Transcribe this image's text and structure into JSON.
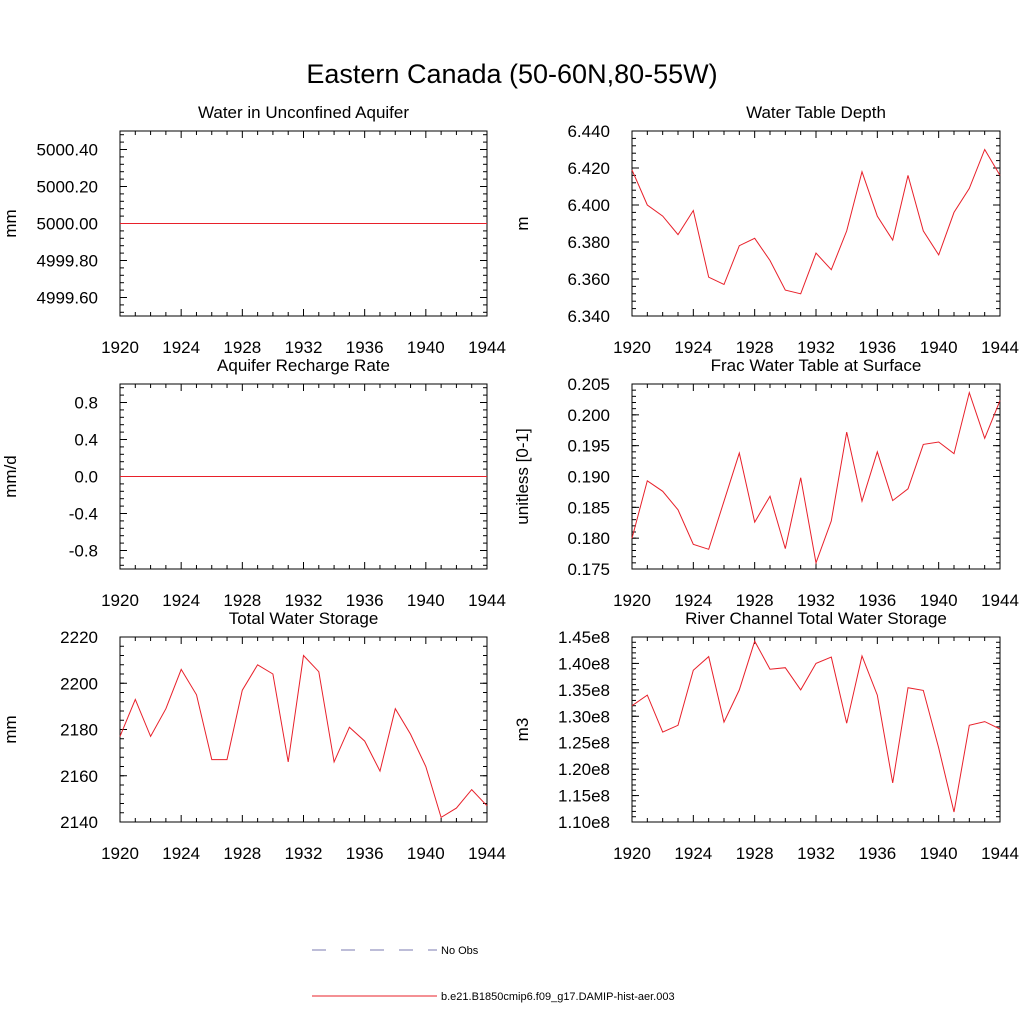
{
  "figure": {
    "title": "Eastern Canada (50-60N,80-55W)"
  },
  "legend": {
    "placement": "bottom-center",
    "entries": [
      {
        "label": "No Obs",
        "style": "dashed",
        "color": "#7b7bb0"
      },
      {
        "label": "b.e21.B1850cmip6.f09_g17.DAMIP-hist-aer.003",
        "style": "solid",
        "color": "#e8202a"
      }
    ]
  },
  "chart_data": [
    {
      "type": "line",
      "title": "Water in Unconfined Aquifer",
      "ylabel": "mm",
      "xlim": [
        1920,
        1944
      ],
      "ylim": [
        4999.5,
        5000.5
      ],
      "xticks": [
        "1920",
        "1924",
        "1928",
        "1932",
        "1936",
        "1940",
        "1944"
      ],
      "yticks": [
        {
          "value": 4999.6,
          "label": "4999.60"
        },
        {
          "value": 4999.8,
          "label": "4999.80"
        },
        {
          "value": 5000.0,
          "label": "5000.00"
        },
        {
          "value": 5000.2,
          "label": "5000.20"
        },
        {
          "value": 5000.4,
          "label": "5000.40"
        }
      ],
      "series": [
        {
          "color": "#e8202a",
          "x": [
            1920,
            1944
          ],
          "values": [
            5000.0,
            5000.0
          ]
        }
      ]
    },
    {
      "type": "line",
      "title": "Water Table Depth",
      "ylabel": "m",
      "xlim": [
        1920,
        1944
      ],
      "ylim": [
        6.34,
        6.44
      ],
      "xticks": [
        "1920",
        "1924",
        "1928",
        "1932",
        "1936",
        "1940",
        "1944"
      ],
      "yticks": [
        {
          "value": 6.34,
          "label": "6.340"
        },
        {
          "value": 6.36,
          "label": "6.360"
        },
        {
          "value": 6.38,
          "label": "6.380"
        },
        {
          "value": 6.4,
          "label": "6.400"
        },
        {
          "value": 6.42,
          "label": "6.420"
        },
        {
          "value": 6.44,
          "label": "6.440"
        }
      ],
      "series": [
        {
          "color": "#e8202a",
          "x": [
            1920,
            1921,
            1922,
            1923,
            1924,
            1925,
            1926,
            1927,
            1928,
            1929,
            1930,
            1931,
            1932,
            1933,
            1934,
            1935,
            1936,
            1937,
            1938,
            1939,
            1940,
            1941,
            1942,
            1943,
            1944
          ],
          "values": [
            6.419,
            6.4,
            6.394,
            6.384,
            6.397,
            6.361,
            6.357,
            6.378,
            6.382,
            6.37,
            6.354,
            6.352,
            6.374,
            6.365,
            6.386,
            6.418,
            6.394,
            6.381,
            6.416,
            6.386,
            6.373,
            6.396,
            6.409,
            6.43,
            6.416
          ]
        }
      ]
    },
    {
      "type": "line",
      "title": "Aquifer Recharge Rate",
      "ylabel": "mm/d",
      "xlim": [
        1920,
        1944
      ],
      "ylim": [
        -1.0,
        1.0
      ],
      "xticks": [
        "1920",
        "1924",
        "1928",
        "1932",
        "1936",
        "1940",
        "1944"
      ],
      "yticks": [
        {
          "value": -0.8,
          "label": "-0.8"
        },
        {
          "value": -0.4,
          "label": "-0.4"
        },
        {
          "value": 0.0,
          "label": "0.0"
        },
        {
          "value": 0.4,
          "label": "0.4"
        },
        {
          "value": 0.8,
          "label": "0.8"
        }
      ],
      "series": [
        {
          "color": "#e8202a",
          "x": [
            1920,
            1944
          ],
          "values": [
            0.0,
            0.0
          ]
        }
      ]
    },
    {
      "type": "line",
      "title": "Frac Water Table at Surface",
      "ylabel": "unitless [0-1]",
      "xlim": [
        1920,
        1944
      ],
      "ylim": [
        0.175,
        0.205
      ],
      "xticks": [
        "1920",
        "1924",
        "1928",
        "1932",
        "1936",
        "1940",
        "1944"
      ],
      "yticks": [
        {
          "value": 0.175,
          "label": "0.175"
        },
        {
          "value": 0.18,
          "label": "0.180"
        },
        {
          "value": 0.185,
          "label": "0.185"
        },
        {
          "value": 0.19,
          "label": "0.190"
        },
        {
          "value": 0.195,
          "label": "0.195"
        },
        {
          "value": 0.2,
          "label": "0.200"
        },
        {
          "value": 0.205,
          "label": "0.205"
        }
      ],
      "series": [
        {
          "color": "#e8202a",
          "x": [
            1920,
            1921,
            1922,
            1923,
            1924,
            1925,
            1926,
            1927,
            1928,
            1929,
            1930,
            1931,
            1932,
            1933,
            1934,
            1935,
            1936,
            1937,
            1938,
            1939,
            1940,
            1941,
            1942,
            1943,
            1944
          ],
          "values": [
            0.18,
            0.1893,
            0.1876,
            0.1846,
            0.179,
            0.1782,
            0.186,
            0.1938,
            0.1826,
            0.1868,
            0.1783,
            0.1898,
            0.176,
            0.1828,
            0.1972,
            0.186,
            0.194,
            0.1861,
            0.188,
            0.1952,
            0.1956,
            0.1937,
            0.2036,
            0.1962,
            0.2023
          ]
        }
      ]
    },
    {
      "type": "line",
      "title": "Total Water Storage",
      "ylabel": "mm",
      "xlim": [
        1920,
        1944
      ],
      "ylim": [
        2140,
        2220
      ],
      "xticks": [
        "1920",
        "1924",
        "1928",
        "1932",
        "1936",
        "1940",
        "1944"
      ],
      "yticks": [
        {
          "value": 2140,
          "label": "2140"
        },
        {
          "value": 2160,
          "label": "2160"
        },
        {
          "value": 2180,
          "label": "2180"
        },
        {
          "value": 2200,
          "label": "2200"
        },
        {
          "value": 2220,
          "label": "2220"
        }
      ],
      "series": [
        {
          "color": "#e8202a",
          "x": [
            1920,
            1921,
            1922,
            1923,
            1924,
            1925,
            1926,
            1927,
            1928,
            1929,
            1930,
            1931,
            1932,
            1933,
            1934,
            1935,
            1936,
            1937,
            1938,
            1939,
            1940,
            1941,
            1942,
            1943,
            1944
          ],
          "values": [
            2177,
            2193,
            2177,
            2189,
            2206,
            2195,
            2167,
            2167,
            2197,
            2208,
            2204,
            2166,
            2212,
            2205,
            2166,
            2181,
            2175,
            2162,
            2189,
            2178,
            2164,
            2142,
            2146,
            2154,
            2147
          ]
        }
      ]
    },
    {
      "type": "line",
      "title": "River Channel Total Water Storage",
      "ylabel": "m3",
      "xlim": [
        1920,
        1944
      ],
      "ylim": [
        110000000,
        145000000
      ],
      "xticks": [
        "1920",
        "1924",
        "1928",
        "1932",
        "1936",
        "1940",
        "1944"
      ],
      "yticks": [
        {
          "value": 110000000,
          "label": "1.10e8"
        },
        {
          "value": 115000000,
          "label": "1.15e8"
        },
        {
          "value": 120000000,
          "label": "1.20e8"
        },
        {
          "value": 125000000,
          "label": "1.25e8"
        },
        {
          "value": 130000000,
          "label": "1.30e8"
        },
        {
          "value": 135000000,
          "label": "1.35e8"
        },
        {
          "value": 140000000,
          "label": "1.40e8"
        },
        {
          "value": 145000000,
          "label": "1.45e8"
        }
      ],
      "series": [
        {
          "color": "#e8202a",
          "x": [
            1920,
            1921,
            1922,
            1923,
            1924,
            1925,
            1926,
            1927,
            1928,
            1929,
            1930,
            1931,
            1932,
            1933,
            1934,
            1935,
            1936,
            1937,
            1938,
            1939,
            1940,
            1941,
            1942,
            1943,
            1944
          ],
          "values": [
            132000000,
            134000000,
            127000000,
            128300000,
            138700000,
            141300000,
            128900000,
            135000000,
            144200000,
            138900000,
            139200000,
            135000000,
            140000000,
            141200000,
            128700000,
            141400000,
            134000000,
            117400000,
            135400000,
            134900000,
            124000000,
            111900000,
            128300000,
            129000000,
            127600000
          ]
        }
      ]
    }
  ]
}
